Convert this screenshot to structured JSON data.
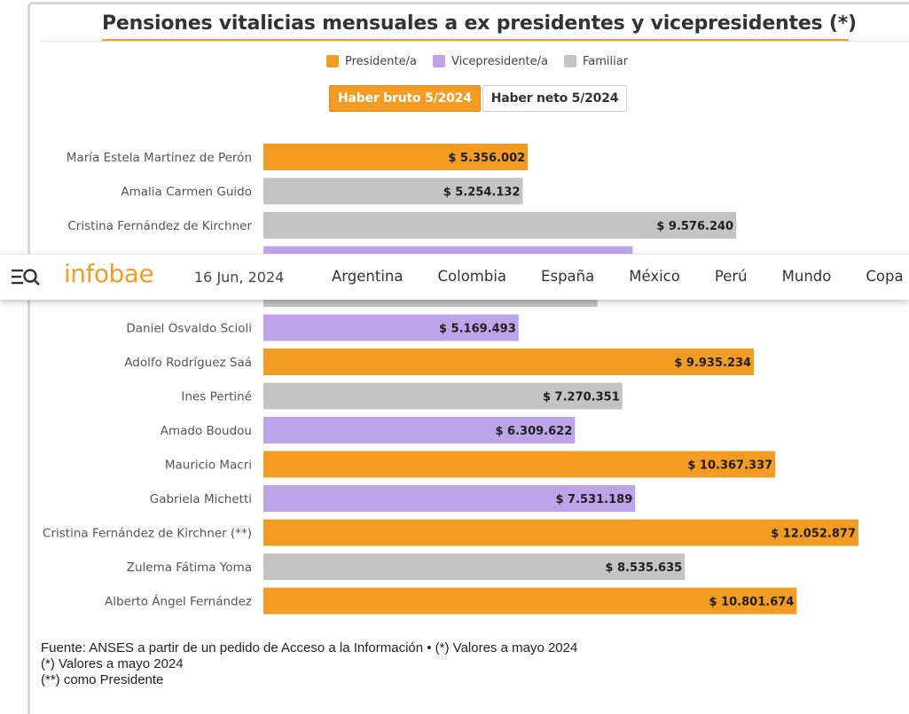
{
  "chart_title": "Pensiones vitalicias mensuales a ex presidentes y vicepresidentes (*)",
  "legend": [
    {
      "label": "Presidente/a",
      "color": "#f39c24"
    },
    {
      "label": "Vicepresidente/a",
      "color": "#bea3e8"
    },
    {
      "label": "Familiar",
      "color": "#c4c4c4"
    }
  ],
  "tabs": [
    {
      "label": "Haber bruto 5/2024",
      "active": true
    },
    {
      "label": "Haber neto 5/2024",
      "active": false
    }
  ],
  "navbar": {
    "logo": "infobae",
    "date": "16 Jun, 2024",
    "links": [
      "Argentina",
      "Colombia",
      "España",
      "México",
      "Perú",
      "Mundo",
      "Copa"
    ]
  },
  "footnotes": {
    "source": "Fuente: ANSES a partir de un pedido de Acceso a la Información • (*) Valores a mayo 2024",
    "note1": "(*) Valores a mayo 2024",
    "note2": "(**) como Presidente"
  },
  "chart_data": {
    "type": "bar",
    "orientation": "horizontal",
    "title": "Pensiones vitalicias mensuales a ex presidentes y vicepresidentes (*)",
    "xlim": [
      0,
      12052877
    ],
    "colors": {
      "Presidente/a": "#f39c24",
      "Vicepresidente/a": "#bea3e8",
      "Familiar": "#c4c4c4"
    },
    "bars": [
      {
        "name": "María Estela Martínez de Perón",
        "value": 5356002,
        "label": "$ 5.356.002",
        "category": "Presidente/a",
        "show_name": true,
        "show_label": true
      },
      {
        "name": "Amalia Carmen Guido",
        "value": 5254132,
        "label": "$ 5.254.132",
        "category": "Familiar",
        "show_name": true,
        "show_label": true
      },
      {
        "name": "Cristina Fernández de Kirchner",
        "value": 9576240,
        "label": "$ 9.576.240",
        "category": "Familiar",
        "show_name": true,
        "show_label": true
      },
      {
        "name": "",
        "value": 7480000,
        "label": "",
        "category": "Vicepresidente/a",
        "show_name": false,
        "show_label": false
      },
      {
        "name": "",
        "value": 6770000,
        "label": "",
        "category": "Familiar",
        "show_name": false,
        "show_label": false
      },
      {
        "name": "Daniel Osvaldo Scioli",
        "value": 5169493,
        "label": "$ 5.169.493",
        "category": "Vicepresidente/a",
        "show_name": true,
        "show_label": true
      },
      {
        "name": "Adolfo Rodríguez Saá",
        "value": 9935234,
        "label": "$ 9.935.234",
        "category": "Presidente/a",
        "show_name": true,
        "show_label": true
      },
      {
        "name": "Ines Pertiné",
        "value": 7270351,
        "label": "$ 7.270.351",
        "category": "Familiar",
        "show_name": true,
        "show_label": true
      },
      {
        "name": "Amado Boudou",
        "value": 6309622,
        "label": "$ 6.309.622",
        "category": "Vicepresidente/a",
        "show_name": true,
        "show_label": true
      },
      {
        "name": "Mauricio Macri",
        "value": 10367337,
        "label": "$ 10.367.337",
        "category": "Presidente/a",
        "show_name": true,
        "show_label": true
      },
      {
        "name": "Gabriela Michetti",
        "value": 7531189,
        "label": "$ 7.531.189",
        "category": "Vicepresidente/a",
        "show_name": true,
        "show_label": true
      },
      {
        "name": "Cristina Fernández de Kirchner (**)",
        "value": 12052877,
        "label": "$ 12.052.877",
        "category": "Presidente/a",
        "show_name": true,
        "show_label": true
      },
      {
        "name": "Zulema Fátima Yoma",
        "value": 8535635,
        "label": "$ 8.535.635",
        "category": "Familiar",
        "show_name": true,
        "show_label": true
      },
      {
        "name": "Alberto Ángel Fernández",
        "value": 10801674,
        "label": "$ 10.801.674",
        "category": "Presidente/a",
        "show_name": true,
        "show_label": true
      }
    ]
  }
}
